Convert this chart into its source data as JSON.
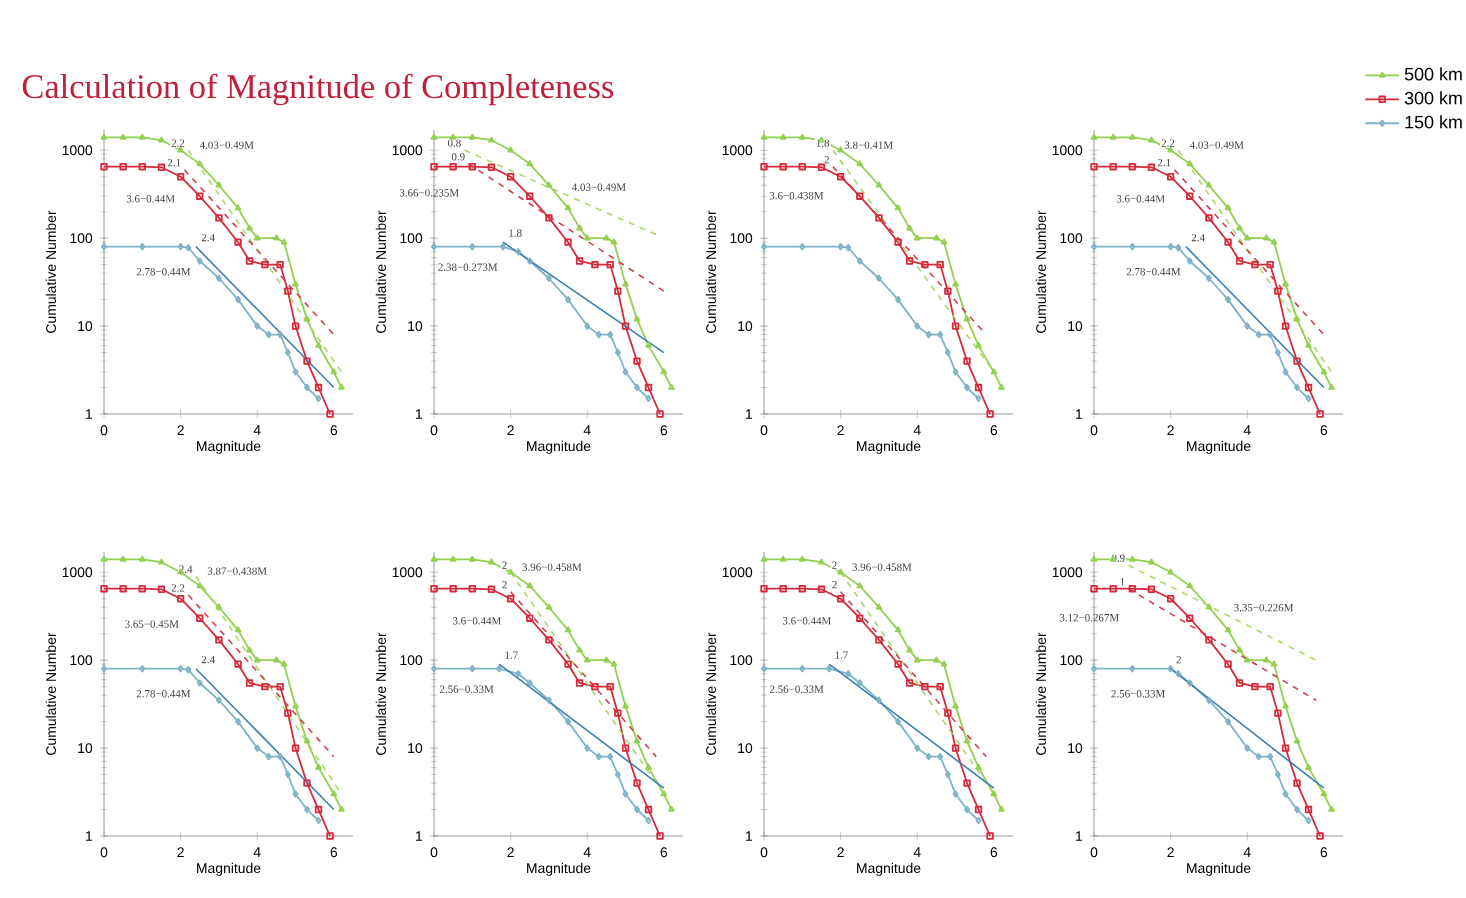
{
  "chart_data": [
    {
      "type": "line",
      "title": "Calculation of Magnitude of Completeness",
      "log": "y",
      "xlabel": "Magnitude",
      "ylabel": "Cumulative Number",
      "xlim": [
        0,
        6.5
      ],
      "ylim": [
        1,
        1700
      ],
      "xticks": [
        0,
        2,
        4,
        6
      ],
      "yticks": [
        1,
        10,
        100,
        1000
      ],
      "series": [
        {
          "color": "#92d050",
          "marker": "triangle",
          "x": [
            0,
            0.5,
            1,
            1.5,
            2,
            2.5,
            3,
            3.5,
            3.8,
            4,
            4.5,
            4.7,
            5,
            5.3,
            5.6,
            6,
            6.2
          ],
          "values": [
            1400,
            1400,
            1400,
            1300,
            1000,
            700,
            400,
            220,
            130,
            100,
            100,
            90,
            30,
            12,
            6,
            3,
            2
          ]
        },
        {
          "color": "#d42a3a",
          "marker": "square",
          "x": [
            0,
            0.5,
            1,
            1.5,
            2,
            2.5,
            3,
            3.5,
            3.8,
            4.2,
            4.6,
            4.8,
            5,
            5.3,
            5.6,
            5.9
          ],
          "values": [
            650,
            650,
            650,
            640,
            500,
            300,
            170,
            90,
            55,
            50,
            50,
            25,
            10,
            4,
            2,
            1
          ]
        },
        {
          "color": "#7fb3c8",
          "marker": "diamond",
          "x": [
            0,
            1,
            2,
            2.2,
            2.5,
            3,
            3.5,
            4,
            4.3,
            4.6,
            4.8,
            5,
            5.3,
            5.6
          ],
          "values": [
            80,
            80,
            80,
            78,
            55,
            35,
            20,
            10,
            8,
            8,
            5,
            3,
            2,
            1.5
          ]
        },
        {
          "color": "#a8d86a",
          "line_style": "dashed",
          "x": [
            2.2,
            6.2
          ],
          "values": [
            1000,
            3
          ]
        },
        {
          "color": "#d0404a",
          "line_style": "dashed",
          "x": [
            2.1,
            6
          ],
          "values": [
            600,
            8
          ]
        },
        {
          "color": "#3d7fb0",
          "x": [
            2.4,
            6
          ],
          "values": [
            80,
            2
          ]
        }
      ],
      "annotations": [
        {
          "text": "2.2",
          "x": 2.2,
          "y": 1000
        },
        {
          "text": "2.1",
          "x": 2.1,
          "y": 600
        },
        {
          "text": "2.4",
          "x": 2.4,
          "y": 80
        },
        {
          "text": "4.03−0.49M",
          "x": 2.2,
          "y": 1000
        },
        {
          "text": "3.6−0.44M",
          "x": 2.1,
          "y": 600
        },
        {
          "text": "2.78−0.44M",
          "x": 2.4,
          "y": 80
        }
      ]
    },
    {
      "type": "line",
      "log": "y",
      "xlabel": "Magnitude",
      "ylabel": "Cumulative Number",
      "xlim": [
        0,
        6.5
      ],
      "ylim": [
        1,
        1700
      ],
      "xticks": [
        0,
        2,
        4,
        6
      ],
      "yticks": [
        1,
        10,
        100,
        1000
      ],
      "series": [
        {
          "color": "#92d050",
          "marker": "triangle",
          "x": [
            0,
            0.5,
            1,
            1.5,
            2,
            2.5,
            3,
            3.5,
            3.8,
            4,
            4.5,
            4.7,
            5,
            5.3,
            5.6,
            6,
            6.2
          ],
          "values": [
            1400,
            1400,
            1400,
            1300,
            1000,
            700,
            400,
            220,
            130,
            100,
            100,
            90,
            30,
            12,
            6,
            3,
            2
          ]
        },
        {
          "color": "#d42a3a",
          "marker": "square",
          "x": [
            0,
            0.5,
            1,
            1.5,
            2,
            2.5,
            3,
            3.5,
            3.8,
            4.2,
            4.6,
            4.8,
            5,
            5.3,
            5.6,
            5.9
          ],
          "values": [
            650,
            650,
            650,
            640,
            500,
            300,
            170,
            90,
            55,
            50,
            50,
            25,
            10,
            4,
            2,
            1
          ]
        },
        {
          "color": "#7fb3c8",
          "marker": "diamond",
          "x": [
            0,
            1,
            1.8,
            2.2,
            2.5,
            3,
            3.5,
            4,
            4.3,
            4.6,
            4.8,
            5,
            5.3,
            5.6
          ],
          "values": [
            80,
            80,
            80,
            70,
            55,
            35,
            20,
            10,
            8,
            8,
            5,
            3,
            2,
            1.5
          ]
        },
        {
          "color": "#a8d86a",
          "line_style": "dashed",
          "x": [
            0.8,
            5.8
          ],
          "values": [
            1000,
            110
          ]
        },
        {
          "color": "#d0404a",
          "line_style": "dashed",
          "x": [
            0.9,
            6
          ],
          "values": [
            700,
            25
          ]
        },
        {
          "color": "#3d7fb0",
          "x": [
            1.8,
            6
          ],
          "values": [
            90,
            5
          ]
        }
      ],
      "annotations": [
        {
          "text": "0.8",
          "x": 0.8,
          "y": 1000
        },
        {
          "text": "0.9",
          "x": 0.9,
          "y": 700
        },
        {
          "text": "1.8",
          "x": 1.8,
          "y": 90
        },
        {
          "text": "4.03−0.49M",
          "x": 3.3,
          "y": 332
        },
        {
          "text": "3.66−0.235M",
          "x": 0.9,
          "y": 700
        },
        {
          "text": "2.38−0.273M",
          "x": 1.8,
          "y": 90
        }
      ]
    },
    {
      "type": "line",
      "log": "y",
      "xlabel": "Magnitude",
      "ylabel": "Cumulative Number",
      "xlim": [
        0,
        6.5
      ],
      "ylim": [
        1,
        1700
      ],
      "xticks": [
        0,
        2,
        4,
        6
      ],
      "yticks": [
        1,
        10,
        100,
        1000
      ],
      "series": [
        {
          "color": "#92d050",
          "marker": "triangle",
          "x": [
            0,
            0.5,
            1,
            1.5,
            2,
            2.5,
            3,
            3.5,
            3.8,
            4,
            4.5,
            4.7,
            5,
            5.3,
            5.6,
            6,
            6.2
          ],
          "values": [
            1400,
            1400,
            1400,
            1300,
            1000,
            700,
            400,
            220,
            130,
            100,
            100,
            90,
            30,
            12,
            6,
            3,
            2
          ]
        },
        {
          "color": "#d42a3a",
          "marker": "square",
          "x": [
            0,
            0.5,
            1,
            1.5,
            2,
            2.5,
            3,
            3.5,
            3.8,
            4.2,
            4.6,
            4.8,
            5,
            5.3,
            5.6,
            5.9
          ],
          "values": [
            650,
            650,
            650,
            640,
            500,
            300,
            170,
            90,
            55,
            50,
            50,
            25,
            10,
            4,
            2,
            1
          ]
        },
        {
          "color": "#7fb3c8",
          "marker": "diamond",
          "x": [
            0,
            1,
            2,
            2.2,
            2.5,
            3,
            3.5,
            4,
            4.3,
            4.6,
            4.8,
            5,
            5.3,
            5.6
          ],
          "values": [
            80,
            80,
            80,
            78,
            55,
            35,
            20,
            10,
            8,
            8,
            5,
            3,
            2,
            1.5
          ]
        },
        {
          "color": "#a8d86a",
          "line_style": "dashed",
          "x": [
            1.8,
            6
          ],
          "values": [
            1000,
            3
          ]
        },
        {
          "color": "#d0404a",
          "line_style": "dashed",
          "x": [
            1.8,
            5.8
          ],
          "values": [
            650,
            8
          ]
        }
      ],
      "annotations": [
        {
          "text": "1.8",
          "x": 1.8,
          "y": 1000
        },
        {
          "text": "2",
          "x": 1.8,
          "y": 650
        },
        {
          "text": "3.8−0.41M",
          "x": 1.8,
          "y": 1000
        },
        {
          "text": "3.6−0.438M",
          "x": 1.8,
          "y": 650
        }
      ]
    },
    {
      "type": "line",
      "log": "y",
      "legend": "right",
      "xlabel": "Magnitude",
      "ylabel": "Cumulative Number",
      "xlim": [
        0,
        6.5
      ],
      "ylim": [
        1,
        1700
      ],
      "xticks": [
        0,
        2,
        4,
        6
      ],
      "yticks": [
        1,
        10,
        100,
        1000
      ],
      "series": [
        {
          "name": "500 km",
          "color": "#92d050",
          "marker": "triangle",
          "x": [
            0,
            0.5,
            1,
            1.5,
            2,
            2.5,
            3,
            3.5,
            3.8,
            4,
            4.5,
            4.7,
            5,
            5.3,
            5.6,
            6,
            6.2
          ],
          "values": [
            1400,
            1400,
            1400,
            1300,
            1000,
            700,
            400,
            220,
            130,
            100,
            100,
            90,
            30,
            12,
            6,
            3,
            2
          ]
        },
        {
          "name": "300 km",
          "color": "#d42a3a",
          "marker": "square",
          "x": [
            0,
            0.5,
            1,
            1.5,
            2,
            2.5,
            3,
            3.5,
            3.8,
            4.2,
            4.6,
            4.8,
            5,
            5.3,
            5.6,
            5.9
          ],
          "values": [
            650,
            650,
            650,
            640,
            500,
            300,
            170,
            90,
            55,
            50,
            50,
            25,
            10,
            4,
            2,
            1
          ]
        },
        {
          "name": "150 km",
          "color": "#7fb3c8",
          "marker": "diamond",
          "x": [
            0,
            1,
            2,
            2.2,
            2.5,
            3,
            3.5,
            4,
            4.3,
            4.6,
            4.8,
            5,
            5.3,
            5.6
          ],
          "values": [
            80,
            80,
            80,
            78,
            55,
            35,
            20,
            10,
            8,
            8,
            5,
            3,
            2,
            1.5
          ]
        },
        {
          "color": "#a8d86a",
          "line_style": "dashed",
          "x": [
            2.2,
            6.2
          ],
          "values": [
            1000,
            3
          ]
        },
        {
          "color": "#d0404a",
          "line_style": "dashed",
          "x": [
            2.1,
            6
          ],
          "values": [
            600,
            8
          ]
        },
        {
          "color": "#3d7fb0",
          "x": [
            2.4,
            6
          ],
          "values": [
            80,
            2
          ]
        }
      ],
      "annotations": [
        {
          "text": "2.2",
          "x": 2.2,
          "y": 1000
        },
        {
          "text": "2.1",
          "x": 2.1,
          "y": 600
        },
        {
          "text": "2.4",
          "x": 2.4,
          "y": 80
        },
        {
          "text": "4.03−0.49M",
          "x": 2.2,
          "y": 1000
        },
        {
          "text": "3.6−0.44M",
          "x": 2.1,
          "y": 600
        },
        {
          "text": "2.78−0.44M",
          "x": 2.4,
          "y": 80
        }
      ]
    },
    {
      "type": "line",
      "log": "y",
      "xlabel": "Magnitude",
      "ylabel": "Cumulative Number",
      "xlim": [
        0,
        6.5
      ],
      "ylim": [
        1,
        1700
      ],
      "xticks": [
        0,
        2,
        4,
        6
      ],
      "yticks": [
        1,
        10,
        100,
        1000
      ],
      "series": [
        {
          "color": "#92d050",
          "marker": "triangle",
          "x": [
            0,
            0.5,
            1,
            1.5,
            2,
            2.5,
            3,
            3.5,
            3.8,
            4,
            4.5,
            4.7,
            5,
            5.3,
            5.6,
            6,
            6.2
          ],
          "values": [
            1400,
            1400,
            1400,
            1300,
            1000,
            700,
            400,
            220,
            130,
            100,
            100,
            90,
            30,
            12,
            6,
            3,
            2
          ]
        },
        {
          "color": "#d42a3a",
          "marker": "square",
          "x": [
            0,
            0.5,
            1,
            1.5,
            2,
            2.5,
            3,
            3.5,
            3.8,
            4.2,
            4.6,
            4.8,
            5,
            5.3,
            5.6,
            5.9
          ],
          "values": [
            650,
            650,
            650,
            640,
            500,
            300,
            170,
            90,
            55,
            50,
            50,
            25,
            10,
            4,
            2,
            1
          ]
        },
        {
          "color": "#7fb3c8",
          "marker": "diamond",
          "x": [
            0,
            1,
            2,
            2.2,
            2.5,
            3,
            3.5,
            4,
            4.3,
            4.6,
            4.8,
            5,
            5.3,
            5.6
          ],
          "values": [
            80,
            80,
            80,
            78,
            55,
            35,
            20,
            10,
            8,
            8,
            5,
            3,
            2,
            1.5
          ]
        },
        {
          "color": "#a8d86a",
          "line_style": "dashed",
          "x": [
            2.4,
            6.2
          ],
          "values": [
            900,
            3
          ]
        },
        {
          "color": "#d0404a",
          "line_style": "dashed",
          "x": [
            2.2,
            6
          ],
          "values": [
            550,
            8
          ]
        },
        {
          "color": "#3d7fb0",
          "x": [
            2.4,
            6
          ],
          "values": [
            80,
            2
          ]
        }
      ],
      "annotations": [
        {
          "text": "2.4",
          "x": 2.4,
          "y": 900
        },
        {
          "text": "2.2",
          "x": 2.2,
          "y": 550
        },
        {
          "text": "2.4",
          "x": 2.4,
          "y": 80
        },
        {
          "text": "3.87−0.438M",
          "x": 2.4,
          "y": 900
        },
        {
          "text": "3.65−0.45M",
          "x": 2.2,
          "y": 550
        },
        {
          "text": "2.78−0.44M",
          "x": 2.4,
          "y": 80
        }
      ]
    },
    {
      "type": "line",
      "log": "y",
      "xlabel": "Magnitude",
      "ylabel": "Cumulative Number",
      "xlim": [
        0,
        6.5
      ],
      "ylim": [
        1,
        1700
      ],
      "xticks": [
        0,
        2,
        4,
        6
      ],
      "yticks": [
        1,
        10,
        100,
        1000
      ],
      "series": [
        {
          "color": "#92d050",
          "marker": "triangle",
          "x": [
            0,
            0.5,
            1,
            1.5,
            2,
            2.5,
            3,
            3.5,
            3.8,
            4,
            4.5,
            4.7,
            5,
            5.3,
            5.6,
            6,
            6.2
          ],
          "values": [
            1400,
            1400,
            1400,
            1300,
            1000,
            700,
            400,
            220,
            130,
            100,
            100,
            90,
            30,
            12,
            6,
            3,
            2
          ]
        },
        {
          "color": "#d42a3a",
          "marker": "square",
          "x": [
            0,
            0.5,
            1,
            1.5,
            2,
            2.5,
            3,
            3.5,
            3.8,
            4.2,
            4.6,
            4.8,
            5,
            5.3,
            5.6,
            5.9
          ],
          "values": [
            650,
            650,
            650,
            640,
            500,
            300,
            170,
            90,
            55,
            50,
            50,
            25,
            10,
            4,
            2,
            1
          ]
        },
        {
          "color": "#7fb3c8",
          "marker": "diamond",
          "x": [
            0,
            1,
            1.7,
            2.2,
            2.5,
            3,
            3.5,
            4,
            4.3,
            4.6,
            4.8,
            5,
            5.3,
            5.6
          ],
          "values": [
            80,
            80,
            80,
            70,
            55,
            35,
            20,
            10,
            8,
            8,
            5,
            3,
            2,
            1.5
          ]
        },
        {
          "color": "#a8d86a",
          "line_style": "dashed",
          "x": [
            2,
            6
          ],
          "values": [
            1000,
            3
          ]
        },
        {
          "color": "#d0404a",
          "line_style": "dashed",
          "x": [
            2,
            5.8
          ],
          "values": [
            600,
            8
          ]
        },
        {
          "color": "#3d7fb0",
          "x": [
            1.7,
            6
          ],
          "values": [
            90,
            3.5
          ]
        }
      ],
      "annotations": [
        {
          "text": "2",
          "x": 2,
          "y": 1000
        },
        {
          "text": "2",
          "x": 2,
          "y": 600
        },
        {
          "text": "1.7",
          "x": 1.7,
          "y": 90
        },
        {
          "text": "3.96−0.458M",
          "x": 2,
          "y": 1000
        },
        {
          "text": "3.6−0.44M",
          "x": 2,
          "y": 600
        },
        {
          "text": "2.56−0.33M",
          "x": 1.7,
          "y": 90
        }
      ]
    },
    {
      "type": "line",
      "log": "y",
      "xlabel": "Magnitude",
      "ylabel": "Cumulative Number",
      "xlim": [
        0,
        6.5
      ],
      "ylim": [
        1,
        1700
      ],
      "xticks": [
        0,
        2,
        4,
        6
      ],
      "yticks": [
        1,
        10,
        100,
        1000
      ],
      "series": [
        {
          "color": "#92d050",
          "marker": "triangle",
          "x": [
            0,
            0.5,
            1,
            1.5,
            2,
            2.5,
            3,
            3.5,
            3.8,
            4,
            4.5,
            4.7,
            5,
            5.3,
            5.6,
            6,
            6.2
          ],
          "values": [
            1400,
            1400,
            1400,
            1300,
            1000,
            700,
            400,
            220,
            130,
            100,
            100,
            90,
            30,
            12,
            6,
            3,
            2
          ]
        },
        {
          "color": "#d42a3a",
          "marker": "square",
          "x": [
            0,
            0.5,
            1,
            1.5,
            2,
            2.5,
            3,
            3.5,
            3.8,
            4.2,
            4.6,
            4.8,
            5,
            5.3,
            5.6,
            5.9
          ],
          "values": [
            650,
            650,
            650,
            640,
            500,
            300,
            170,
            90,
            55,
            50,
            50,
            25,
            10,
            4,
            2,
            1
          ]
        },
        {
          "color": "#7fb3c8",
          "marker": "diamond",
          "x": [
            0,
            1,
            1.7,
            2.2,
            2.5,
            3,
            3.5,
            4,
            4.3,
            4.6,
            4.8,
            5,
            5.3,
            5.6
          ],
          "values": [
            80,
            80,
            80,
            70,
            55,
            35,
            20,
            10,
            8,
            8,
            5,
            3,
            2,
            1.5
          ]
        },
        {
          "color": "#a8d86a",
          "line_style": "dashed",
          "x": [
            2,
            6
          ],
          "values": [
            1000,
            3
          ]
        },
        {
          "color": "#d0404a",
          "line_style": "dashed",
          "x": [
            2,
            5.8
          ],
          "values": [
            600,
            8
          ]
        },
        {
          "color": "#3d7fb0",
          "x": [
            1.7,
            6
          ],
          "values": [
            90,
            3.5
          ]
        }
      ],
      "annotations": [
        {
          "text": "2",
          "x": 2,
          "y": 1000
        },
        {
          "text": "2",
          "x": 2,
          "y": 600
        },
        {
          "text": "1.7",
          "x": 1.7,
          "y": 90
        },
        {
          "text": "3.96−0.458M",
          "x": 2,
          "y": 1000
        },
        {
          "text": "3.6−0.44M",
          "x": 2,
          "y": 600
        },
        {
          "text": "2.56−0.33M",
          "x": 1.7,
          "y": 90
        }
      ]
    },
    {
      "type": "line",
      "log": "y",
      "xlabel": "Magnitude",
      "ylabel": "Cumulative Number",
      "xlim": [
        0,
        6.5
      ],
      "ylim": [
        1,
        1700
      ],
      "xticks": [
        0,
        2,
        4,
        6
      ],
      "yticks": [
        1,
        10,
        100,
        1000
      ],
      "series": [
        {
          "color": "#92d050",
          "marker": "triangle",
          "x": [
            0,
            0.5,
            1,
            1.5,
            2,
            2.5,
            3,
            3.5,
            3.8,
            4,
            4.5,
            4.7,
            5,
            5.3,
            5.6,
            6,
            6.2
          ],
          "values": [
            1400,
            1400,
            1400,
            1300,
            1000,
            700,
            400,
            220,
            130,
            100,
            100,
            90,
            30,
            12,
            6,
            3,
            2
          ]
        },
        {
          "color": "#d42a3a",
          "marker": "square",
          "x": [
            0,
            0.5,
            1,
            1.5,
            2,
            2.5,
            3,
            3.5,
            3.8,
            4.2,
            4.6,
            4.8,
            5,
            5.3,
            5.6,
            5.9
          ],
          "values": [
            650,
            650,
            650,
            640,
            500,
            300,
            170,
            90,
            55,
            50,
            50,
            25,
            10,
            4,
            2,
            1
          ]
        },
        {
          "color": "#7fb3c8",
          "marker": "diamond",
          "x": [
            0,
            1,
            2,
            2.2,
            2.5,
            3,
            3.5,
            4,
            4.3,
            4.6,
            4.8,
            5,
            5.3,
            5.6
          ],
          "values": [
            80,
            80,
            80,
            70,
            55,
            35,
            20,
            10,
            8,
            8,
            5,
            3,
            2,
            1.5
          ]
        },
        {
          "color": "#a8d86a",
          "line_style": "dashed",
          "x": [
            0.9,
            5.8
          ],
          "values": [
            1200,
            100
          ]
        },
        {
          "color": "#d0404a",
          "line_style": "dashed",
          "x": [
            0.9,
            5.8
          ],
          "values": [
            650,
            35
          ]
        },
        {
          "color": "#3d7fb0",
          "x": [
            2,
            6
          ],
          "values": [
            80,
            3.5
          ]
        }
      ],
      "annotations": [
        {
          "text": "0.9",
          "x": 0.9,
          "y": 1200
        },
        {
          "text": "1",
          "x": 0.9,
          "y": 650
        },
        {
          "text": "2",
          "x": 2,
          "y": 80
        },
        {
          "text": "3.35−0.226M",
          "x": 3.35,
          "y": 346
        },
        {
          "text": "3.12−0.267M",
          "x": 0.9,
          "y": 650
        },
        {
          "text": "2.56−0.33M",
          "x": 2,
          "y": 80
        }
      ]
    }
  ]
}
